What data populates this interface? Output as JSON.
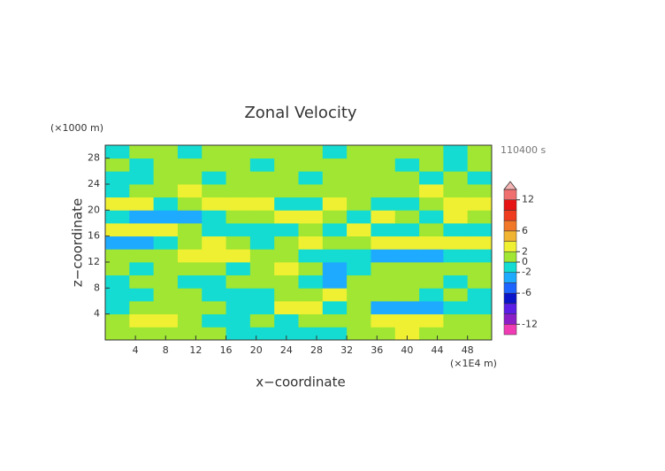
{
  "chart_data": {
    "type": "heatmap",
    "title": "Zonal Velocity",
    "y_unit_label": "(×1000 m)",
    "x_unit_label": "(×1E4 m)",
    "time_label": "110400 s",
    "xlabel": "x−coordinate",
    "ylabel": "z−coordinate",
    "xlim": [
      0,
      51.2
    ],
    "ylim": [
      0,
      30
    ],
    "xticks": [
      4,
      8,
      12,
      16,
      20,
      24,
      28,
      32,
      36,
      40,
      44,
      48
    ],
    "yticks": [
      4,
      8,
      12,
      16,
      20,
      24,
      28
    ],
    "x": [
      1.6,
      4.8,
      8.0,
      11.2,
      14.4,
      17.6,
      20.8,
      24.0,
      27.2,
      30.4,
      33.6,
      36.8,
      40.0,
      43.2,
      46.4,
      49.6
    ],
    "y": [
      1,
      3,
      5,
      7,
      9,
      11,
      13,
      15,
      17,
      19,
      21,
      23,
      25,
      27,
      29
    ],
    "values": [
      [
        0.5,
        1,
        1.5,
        1,
        0.5,
        -0.5,
        -1,
        -0.5,
        -2,
        -1,
        0.5,
        1,
        2,
        1,
        0.5,
        0
      ],
      [
        1,
        2.5,
        2,
        1,
        -0.5,
        -0.5,
        0.5,
        -1,
        1,
        0.5,
        0.5,
        2,
        3,
        2,
        1,
        0.5
      ],
      [
        -0.5,
        0.5,
        1,
        1.5,
        1,
        -0.5,
        -1,
        3,
        2,
        -1,
        1,
        -3,
        -4,
        -3,
        -1,
        -0.5
      ],
      [
        -1,
        -0.5,
        0.5,
        0.5,
        -0.5,
        -1,
        -0.5,
        1,
        1.5,
        2,
        0.5,
        1,
        0.5,
        -0.5,
        0.5,
        -1
      ],
      [
        -0.5,
        0.5,
        1,
        -0.5,
        -1,
        0.5,
        0.5,
        1,
        -1,
        -2.5,
        1,
        1,
        0.5,
        0.5,
        -0.5,
        1
      ],
      [
        1,
        -0.5,
        0.5,
        1,
        0.5,
        -0.5,
        1,
        2,
        0.5,
        -3,
        -1,
        0.5,
        1,
        0.5,
        1,
        0.5
      ],
      [
        0.5,
        1,
        1,
        2,
        3,
        2,
        0.5,
        1,
        -1,
        -2,
        -0.5,
        -3,
        -2.5,
        -3,
        -2,
        -1
      ],
      [
        -3,
        -2.5,
        -1,
        1,
        2,
        0.5,
        -1,
        0.5,
        2,
        1,
        0.5,
        3,
        2.5,
        2,
        3,
        2
      ],
      [
        2,
        3,
        3,
        1,
        -1,
        -2,
        -1.5,
        -1,
        1,
        -0.5,
        2,
        -1,
        -2,
        1,
        -1,
        -2
      ],
      [
        -1,
        -3,
        -4,
        -3,
        -1,
        1,
        1,
        2,
        3,
        1,
        -1,
        2,
        1,
        -2,
        2,
        1
      ],
      [
        3,
        2,
        -1,
        1,
        2,
        3,
        2,
        -1,
        -2,
        2,
        1,
        -1,
        -1,
        1,
        3,
        3
      ],
      [
        -2,
        1,
        1.5,
        2,
        1,
        0.5,
        1,
        0.5,
        0.5,
        0.5,
        1,
        0.5,
        1,
        2,
        1,
        0.5
      ],
      [
        -0.5,
        -0.5,
        0.5,
        1,
        -0.5,
        0.5,
        1,
        0.5,
        -0.5,
        1,
        0.5,
        1,
        0.5,
        -0.5,
        0.5,
        -0.5
      ],
      [
        0.5,
        -0.5,
        1,
        0.5,
        1,
        0.5,
        -0.5,
        1,
        0.5,
        0.5,
        1,
        0.5,
        -0.5,
        1,
        -0.5,
        0.5
      ],
      [
        -0.5,
        1,
        0.5,
        -0.5,
        1,
        1,
        0.5,
        0.5,
        1,
        -0.5,
        0.5,
        1,
        0.5,
        0.5,
        -0.5,
        0.5
      ]
    ],
    "levels": [
      -14,
      -12,
      -10,
      -8,
      -6,
      -4,
      -2,
      0,
      2,
      4,
      6,
      8,
      10,
      12,
      14
    ],
    "colors": [
      "#f03cb4",
      "#8c1ec8",
      "#5a1ee6",
      "#0a14c8",
      "#1e64ff",
      "#1eaaff",
      "#14dcd2",
      "#a0e632",
      "#f0f032",
      "#f0b432",
      "#f07828",
      "#f03c1e",
      "#e61414",
      "#f07070",
      "#f5b4b4"
    ],
    "colorbar_ticks": [
      -12,
      -6,
      -2,
      0,
      2,
      6,
      12
    ]
  }
}
